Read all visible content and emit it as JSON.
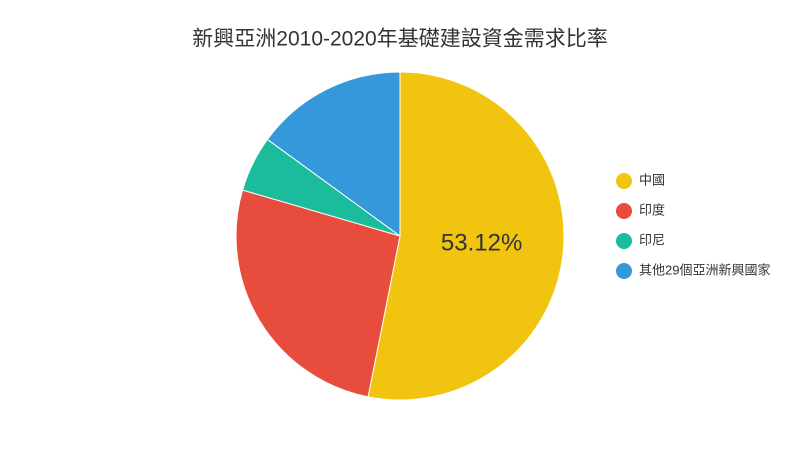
{
  "chart_data": {
    "type": "pie",
    "title": "新興亞洲2010-2020年基礎建設資金需求比率",
    "categories": [
      "中國",
      "印度",
      "印尼",
      "其他29個亞洲新興國家"
    ],
    "values": [
      53.12,
      26.4,
      5.5,
      14.98
    ],
    "value_labels": [
      "53.12%",
      null,
      null,
      null
    ],
    "colors": [
      "#f1c40f",
      "#e74c3c",
      "#1abc9c",
      "#3498db"
    ],
    "legend": "right"
  }
}
